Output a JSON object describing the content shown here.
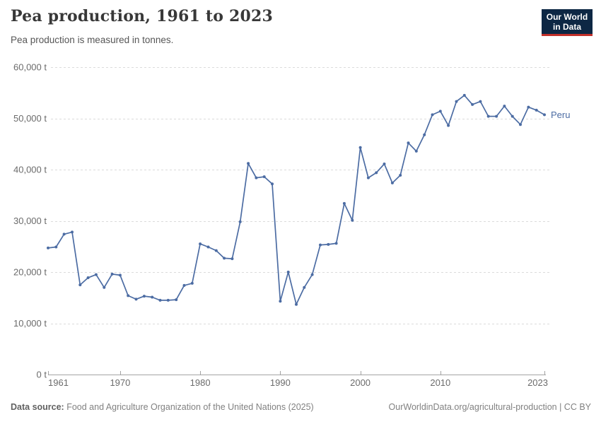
{
  "header": {
    "title": "Pea production, 1961 to 2023",
    "subtitle": "Pea production is measured in tonnes.",
    "logo": {
      "line1": "Our World",
      "line2": "in Data"
    }
  },
  "chart_data": {
    "type": "line",
    "title": "Pea production, 1961 to 2023",
    "unit": "tonnes",
    "grid": "horizontal-dashed",
    "legend_position": "end-of-line-label",
    "x": [
      1961,
      1962,
      1963,
      1964,
      1965,
      1966,
      1967,
      1968,
      1969,
      1970,
      1971,
      1972,
      1973,
      1974,
      1975,
      1976,
      1977,
      1978,
      1979,
      1980,
      1981,
      1982,
      1983,
      1984,
      1985,
      1986,
      1987,
      1988,
      1989,
      1990,
      1991,
      1992,
      1993,
      1994,
      1995,
      1996,
      1997,
      1998,
      1999,
      2000,
      2001,
      2002,
      2003,
      2004,
      2005,
      2006,
      2007,
      2008,
      2009,
      2010,
      2011,
      2012,
      2013,
      2014,
      2015,
      2016,
      2017,
      2018,
      2019,
      2020,
      2021,
      2022,
      2023
    ],
    "series": [
      {
        "name": "Peru",
        "color": "#4C6CA3",
        "values": [
          24700,
          24900,
          27400,
          27800,
          17500,
          18900,
          19500,
          17000,
          19600,
          19400,
          15400,
          14700,
          15300,
          15100,
          14500,
          14500,
          14600,
          17400,
          17800,
          25500,
          24900,
          24200,
          22700,
          22600,
          29800,
          41200,
          38400,
          38600,
          37200,
          14300,
          20000,
          13700,
          17000,
          19500,
          25300,
          25400,
          25600,
          33400,
          30100,
          44300,
          38400,
          39400,
          41100,
          37400,
          38900,
          45200,
          43600,
          46800,
          50700,
          51400,
          48600,
          53300,
          54500,
          52700,
          53300,
          50400,
          50400,
          52400,
          50400,
          48800,
          52200,
          51600,
          50700
        ]
      }
    ],
    "ylim": [
      0,
      60000
    ],
    "yticks": [
      0,
      10000,
      20000,
      30000,
      40000,
      50000,
      60000
    ],
    "ytick_labels": [
      "0 t",
      "10,000 t",
      "20,000 t",
      "30,000 t",
      "40,000 t",
      "50,000 t",
      "60,000 t"
    ],
    "xticks": [
      1961,
      1970,
      1980,
      1990,
      2000,
      2010,
      2023
    ],
    "xtick_labels": [
      "1961",
      "1970",
      "1980",
      "1990",
      "2000",
      "2010",
      "2023"
    ]
  },
  "footer": {
    "source_label": "Data source:",
    "source_text": " Food and Agriculture Organization of the United Nations (2025)",
    "link_text": "OurWorldinData.org/agricultural-production | CC BY"
  },
  "colors": {
    "line": "#4C6CA3",
    "logo_navy": "#0D2744",
    "logo_red": "#C2302A",
    "gridline": "#dbdbdb",
    "axis": "#a3a3a3",
    "tick_text": "#6b6b6b"
  }
}
